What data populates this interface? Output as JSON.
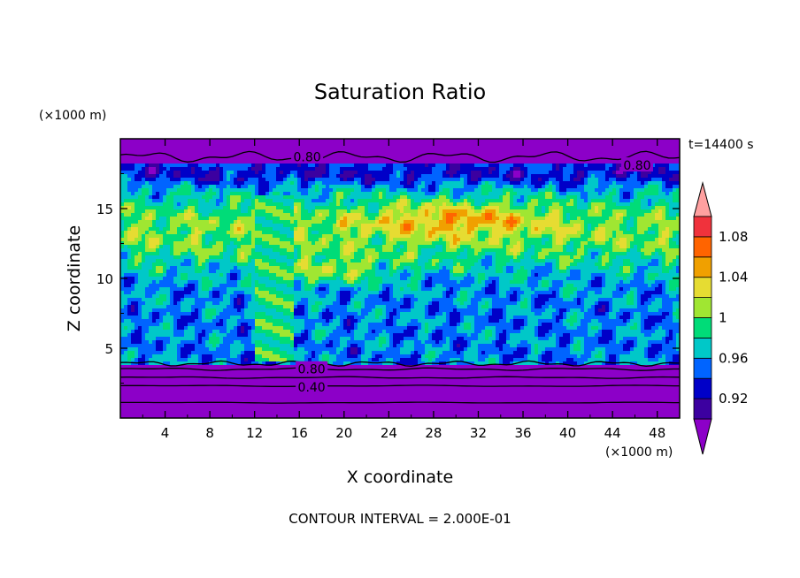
{
  "chart_data": {
    "type": "heatmap",
    "title": "Saturation Ratio",
    "xlabel": "X coordinate",
    "ylabel": "Z coordinate",
    "x_unit": "(×1000 m)",
    "y_unit": "(×1000 m)",
    "time_label": "t=14400 s",
    "footer": "CONTOUR INTERVAL = 2.000E-01",
    "xlim": [
      0,
      50
    ],
    "ylim": [
      0,
      20
    ],
    "x_ticks": [
      4,
      8,
      12,
      16,
      20,
      24,
      28,
      32,
      36,
      40,
      44,
      48
    ],
    "y_ticks": [
      5,
      10,
      15
    ],
    "contour_labels": [
      {
        "text": "0.80",
        "x": 16.7,
        "y": 18.7
      },
      {
        "text": "0.80",
        "x": 46.2,
        "y": 18.1
      },
      {
        "text": "0.80",
        "x": 17.1,
        "y": 3.5
      },
      {
        "text": "0.40",
        "x": 17.1,
        "y": 2.2
      }
    ],
    "colorbar": {
      "levels": [
        0.9,
        0.92,
        0.94,
        0.96,
        0.98,
        1.0,
        1.02,
        1.04,
        1.06,
        1.08,
        1.1
      ],
      "labels": [
        "0.92",
        "0.96",
        "1",
        "1.04",
        "1.08"
      ],
      "colors": [
        "#8c00c8",
        "#3c00a0",
        "#0000c8",
        "#0064ff",
        "#00c8c8",
        "#00dc78",
        "#a0e632",
        "#e6dc32",
        "#f0a000",
        "#ff6400",
        "#f0323c",
        "#ffa0a0"
      ]
    }
  }
}
